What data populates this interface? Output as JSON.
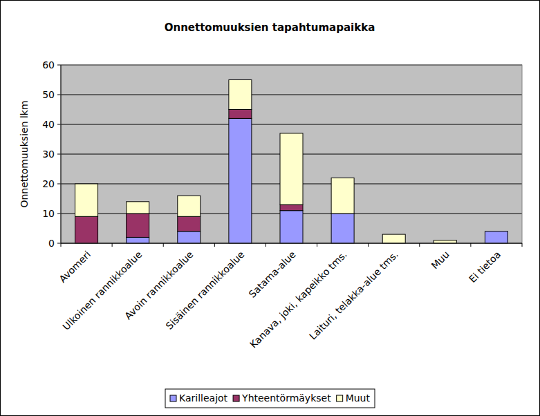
{
  "chart_data": {
    "type": "bar",
    "stacked": true,
    "title": "Onnettomuuksien tapahtumapaikka",
    "y_label": "Onnettomuuksien lkm",
    "categories": [
      "Avomeri",
      "Ulkoinen rannikkoalue",
      "Avoin rannikkoalue",
      "Sisäinen rannikkoalue",
      "Satama-alue",
      "Kanava, joki, kapeikko tms.",
      "Laituri, telakka-alue tms.",
      "Muu",
      "Ei tietoa"
    ],
    "series": [
      {
        "name": "Karilleajot",
        "color": "#9999ff",
        "values": [
          0,
          2,
          4,
          42,
          11,
          10,
          0,
          0,
          4
        ]
      },
      {
        "name": "Yhteentörmäykset",
        "color": "#993366",
        "values": [
          9,
          8,
          5,
          3,
          2,
          0,
          0,
          0,
          0
        ]
      },
      {
        "name": "Muut",
        "color": "#ffffcc",
        "values": [
          11,
          4,
          7,
          10,
          24,
          12,
          3,
          1,
          0
        ]
      }
    ],
    "ylim": [
      0,
      60
    ],
    "yticks": [
      0,
      10,
      20,
      30,
      40,
      50,
      60
    ],
    "grid": true,
    "legend": "bottom"
  }
}
